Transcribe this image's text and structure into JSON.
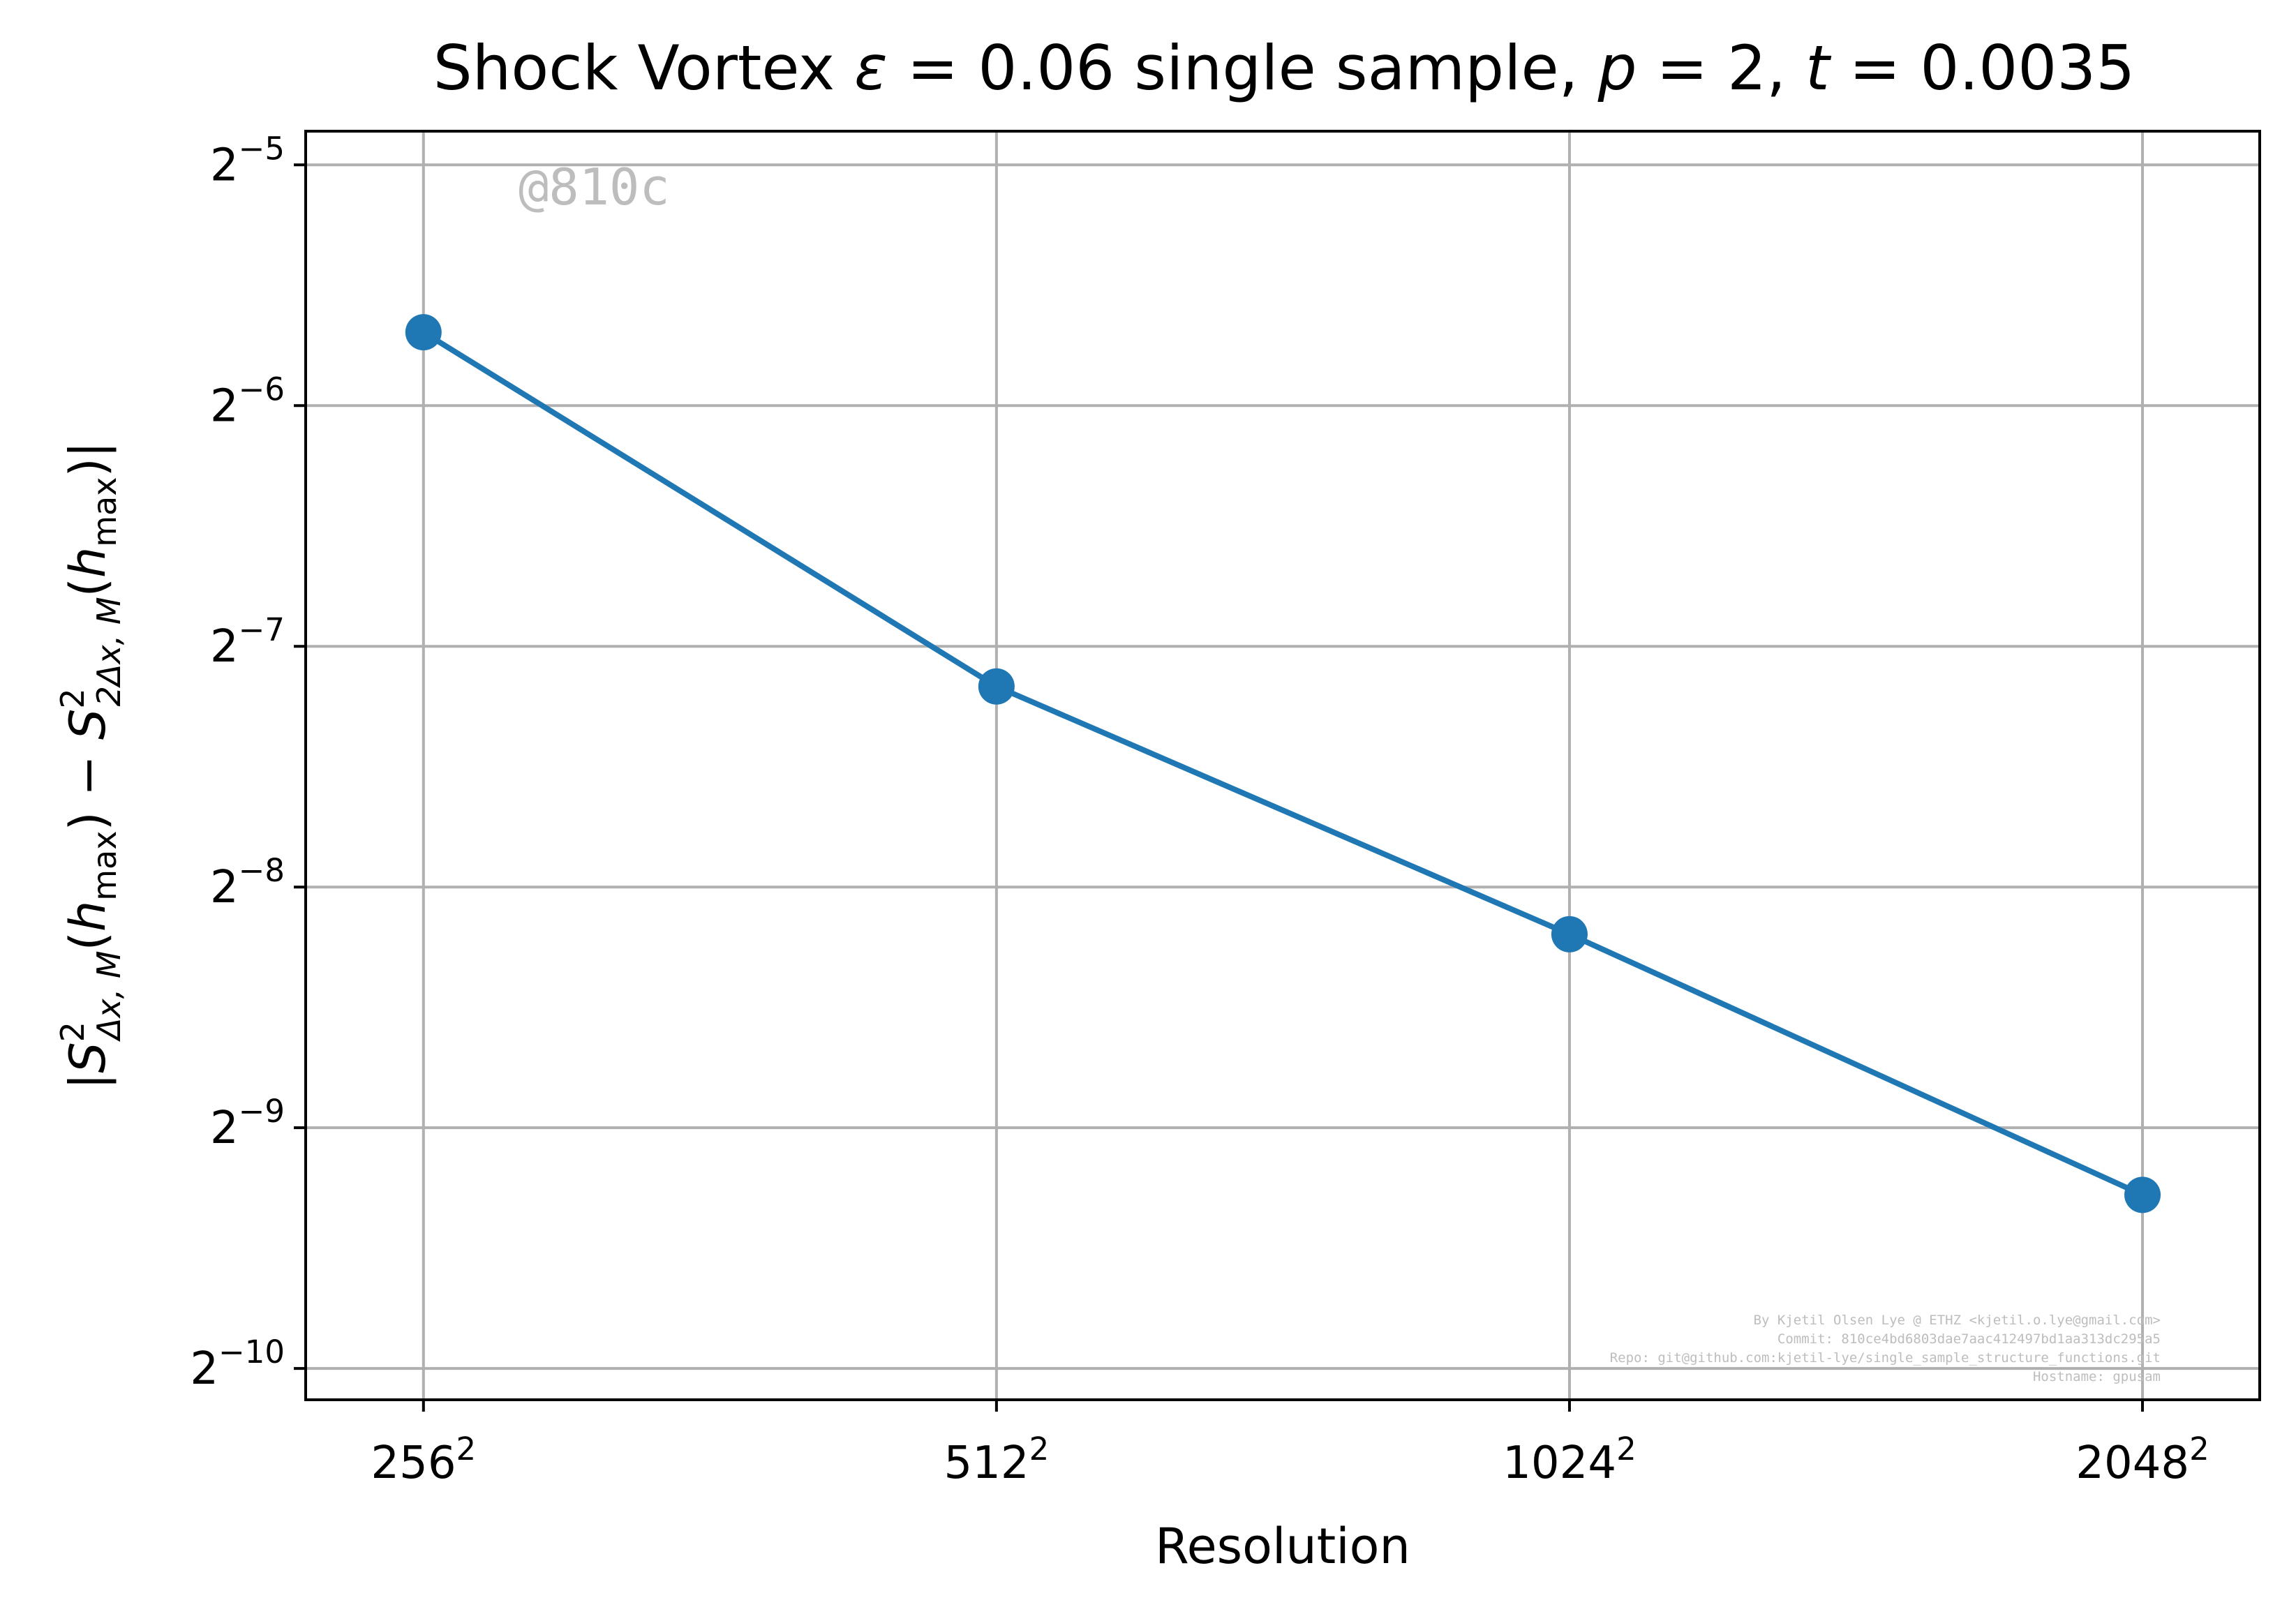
{
  "chart_data": {
    "type": "line",
    "title": "Shock Vortex ε = 0.06 single sample, p = 2, t = 0.0035",
    "xlabel": "Resolution",
    "ylabel": "|S²ΔX,M(hmax) − S²2ΔX,M(hmax)|",
    "x_scale": "log2",
    "y_scale": "log2",
    "x_ticks": [
      {
        "value": 256,
        "base": "256",
        "sup": "2"
      },
      {
        "value": 512,
        "base": "512",
        "sup": "2"
      },
      {
        "value": 1024,
        "base": "1024",
        "sup": "2"
      },
      {
        "value": 2048,
        "base": "2048",
        "sup": "2"
      }
    ],
    "y_ticks": [
      {
        "exp": -5,
        "base": "2",
        "sup": "−5"
      },
      {
        "exp": -6,
        "base": "2",
        "sup": "−6"
      },
      {
        "exp": -7,
        "base": "2",
        "sup": "−7"
      },
      {
        "exp": -8,
        "base": "2",
        "sup": "−8"
      },
      {
        "exp": -9,
        "base": "2",
        "sup": "−9"
      },
      {
        "exp": -10,
        "base": "2",
        "sup": "−10"
      }
    ],
    "xlim": [
      222,
      2360
    ],
    "ylim_log2": [
      -10.13,
      -4.86
    ],
    "grid": true,
    "series": [
      {
        "color": "#1f77b4",
        "marker": "circle",
        "points": [
          {
            "x": 256,
            "y": 0.0193
          },
          {
            "x": 512,
            "y": 0.00696
          },
          {
            "x": 1024,
            "y": 0.00341
          },
          {
            "x": 2048,
            "y": 0.00161
          }
        ]
      }
    ]
  },
  "annotations": {
    "tag": "@810c",
    "credits": [
      "By Kjetil Olsen Lye @ ETHZ <kjetil.o.lye@gmail.com>",
      "Commit: 810ce4bd6803dae7aac412497bd1aa313dc295a5",
      "Repo: git@github.com:kjetil-lye/single_sample_structure_functions.git",
      "Hostname: gpusam"
    ]
  }
}
